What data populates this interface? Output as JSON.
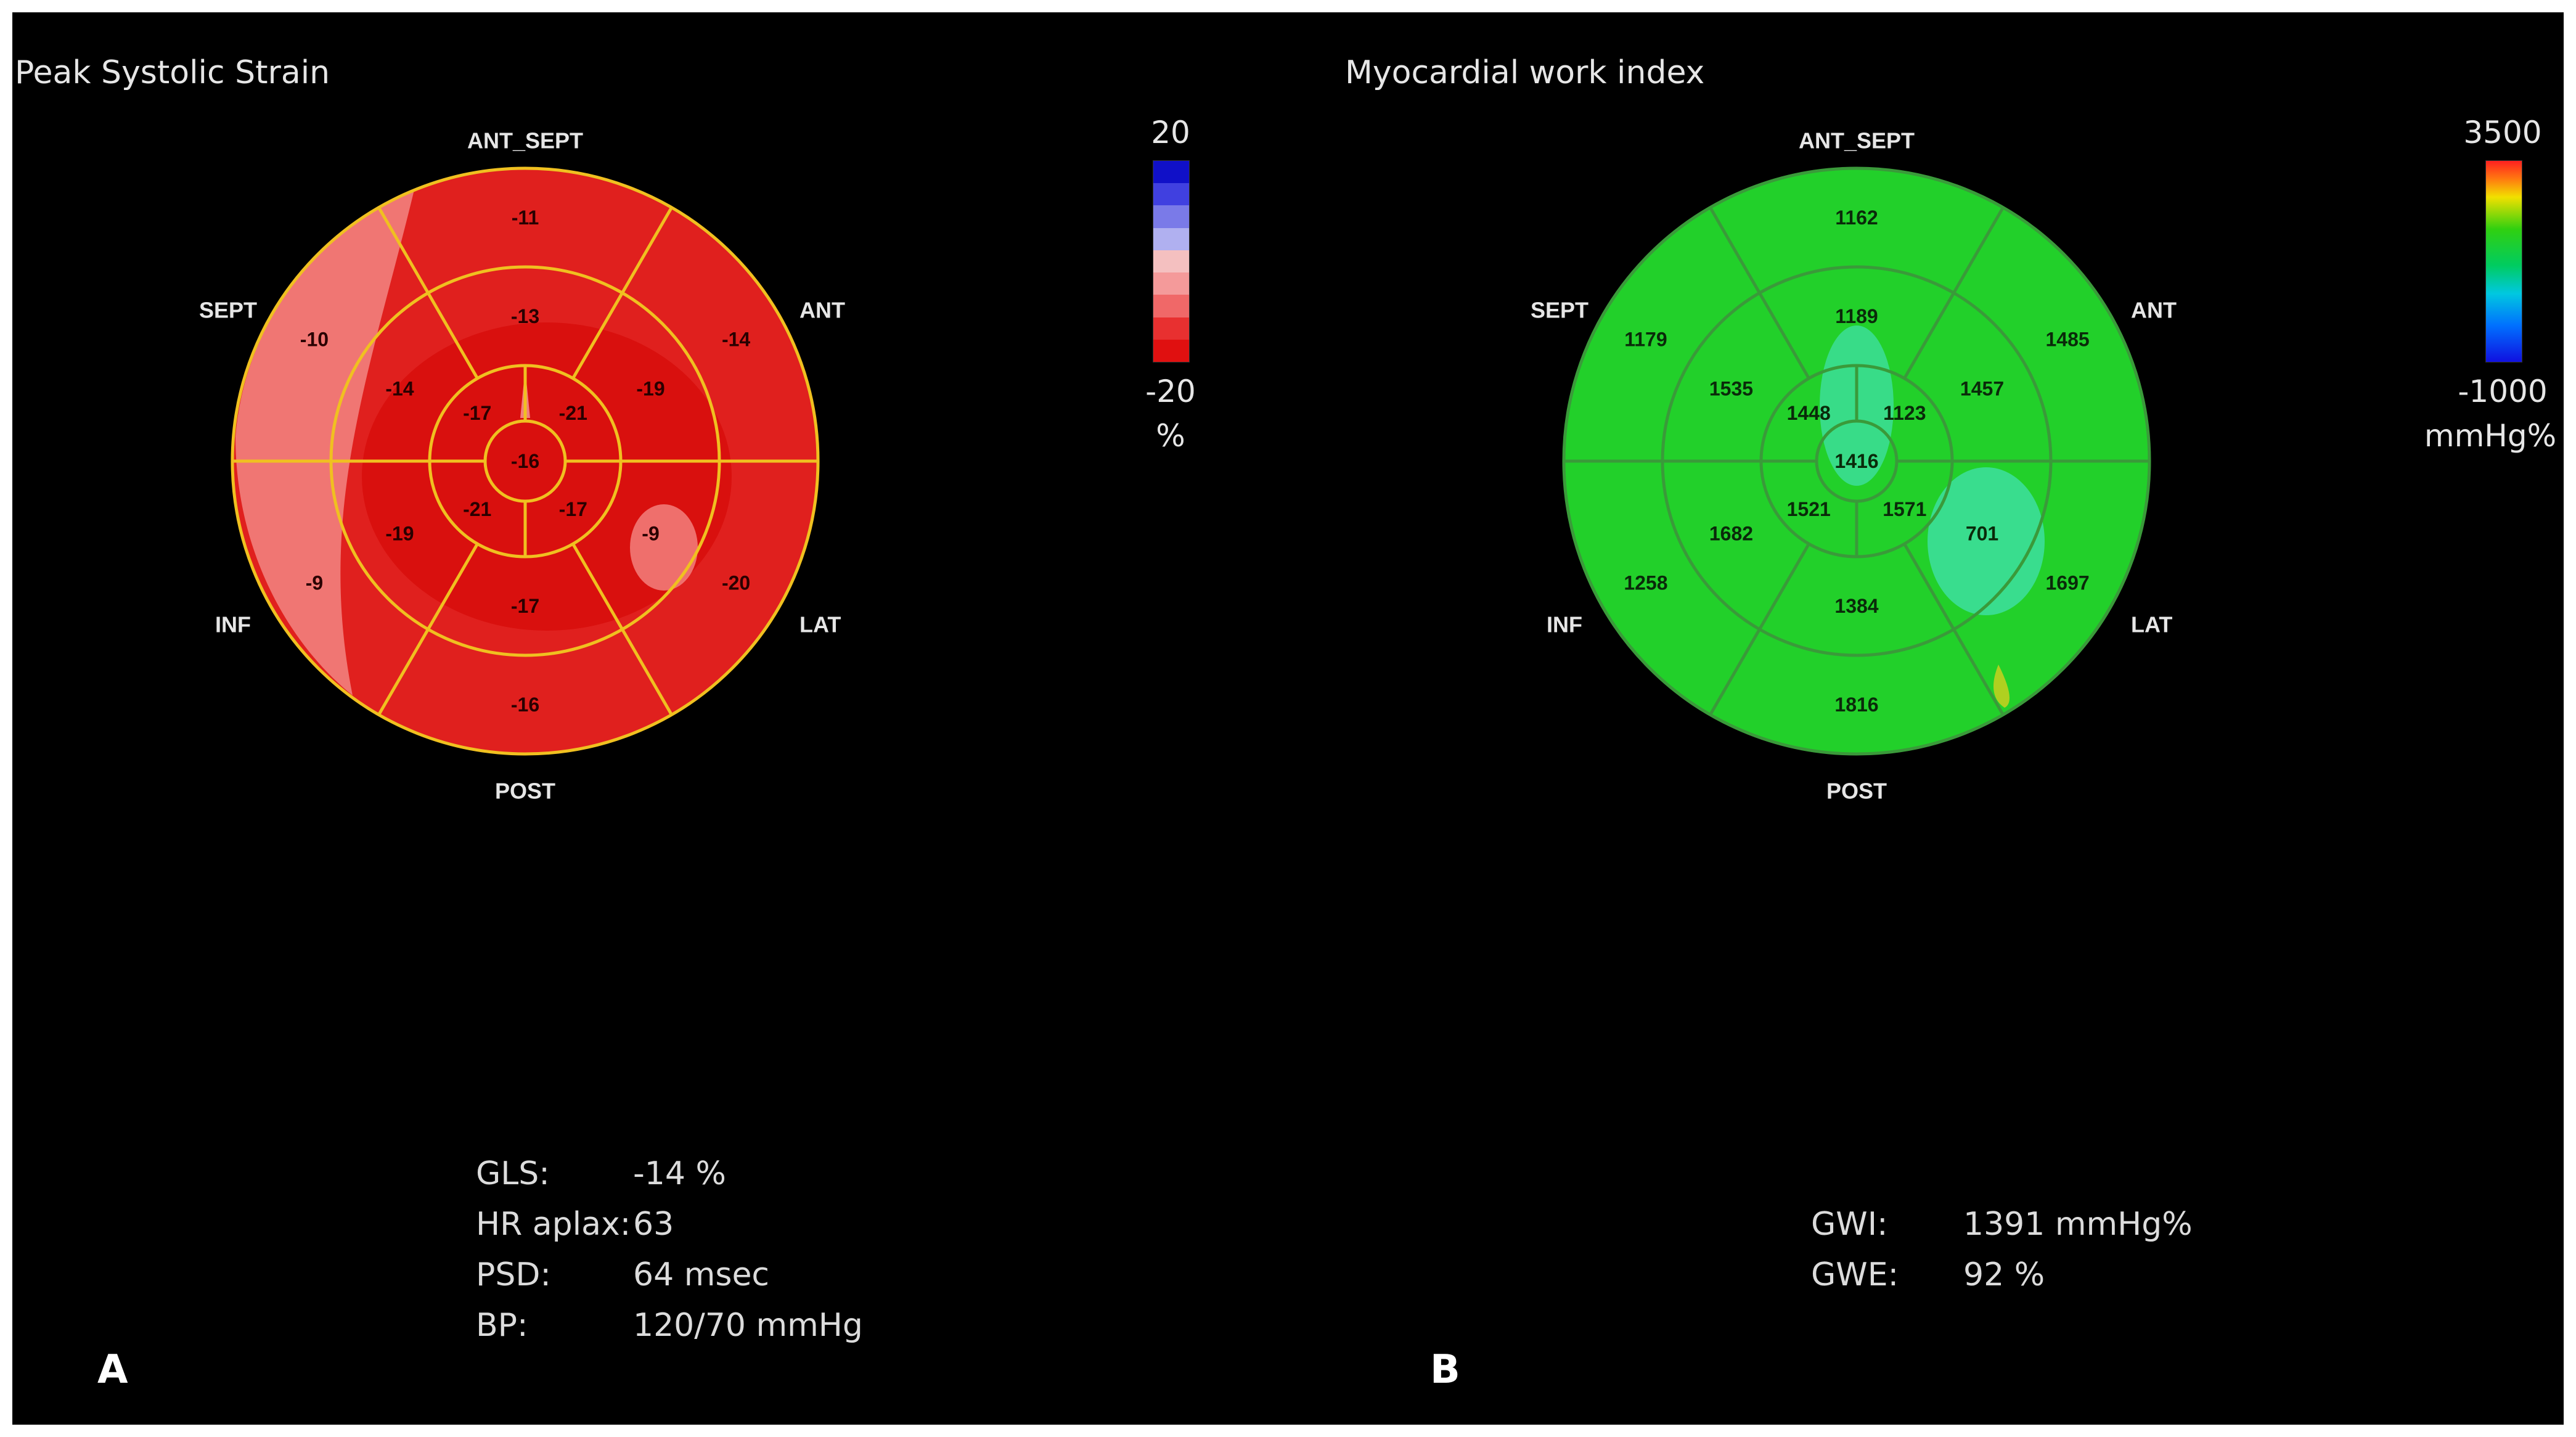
{
  "panels": [
    {
      "id": "A",
      "title": "Peak Systolic Strain",
      "letter": "A",
      "labels": {
        "top": "ANT_SEPT",
        "upper_right": "ANT",
        "lower_right": "LAT",
        "bottom": "POST",
        "lower_left": "INF",
        "upper_left": "SEPT"
      },
      "segments": {
        "basal": [
          "-11",
          "-14",
          "-20",
          "-16",
          "-9",
          "-10"
        ],
        "mid": [
          "-13",
          "-19",
          "-9",
          "-17",
          "-19",
          "-14"
        ],
        "apical": [
          "-21",
          "-17",
          "-21",
          "-17"
        ],
        "apex": "-16"
      },
      "scale": {
        "max": "20",
        "min": "-20",
        "unit": "%"
      },
      "colors": {
        "base": "#e0201e",
        "deep": "#d80e0c",
        "pale": "#f2807c",
        "grid": "#f0c020",
        "text": "#2a0000"
      },
      "stats": [
        {
          "label": "GLS:",
          "value": "-14 %"
        },
        {
          "label": "HR aplax:",
          "value": "63"
        },
        {
          "label": "PSD:",
          "value": "64 msec"
        },
        {
          "label": "BP:",
          "value": "120/70 mmHg"
        }
      ]
    },
    {
      "id": "B",
      "title": "Myocardial work index",
      "letter": "B",
      "labels": {
        "top": "ANT_SEPT",
        "upper_right": "ANT",
        "lower_right": "LAT",
        "bottom": "POST",
        "lower_left": "INF",
        "upper_left": "SEPT"
      },
      "segments": {
        "basal": [
          "1162",
          "1485",
          "1697",
          "1816",
          "1258",
          "1179"
        ],
        "mid": [
          "1189",
          "1457",
          "701",
          "1384",
          "1682",
          "1535"
        ],
        "apical": [
          "1123",
          "1571",
          "1521",
          "1448"
        ],
        "apex": "1416"
      },
      "scale": {
        "max": "3500",
        "min": "-1000",
        "unit": "mmHg%"
      },
      "colors": {
        "base": "#22d02a",
        "deep": "#1cc024",
        "pale": "#40e0a8",
        "grid": "#3a9a3a",
        "text": "#0a2a0a"
      },
      "stats": [
        {
          "label": "GWI:",
          "value": "1391 mmHg%"
        },
        {
          "label": "GWE:",
          "value": "92 %"
        }
      ]
    }
  ],
  "strain_colorbar": [
    "#1010c8",
    "#4040e0",
    "#7a7ae8",
    "#b0b0f0",
    "#f4c0c0",
    "#f49a9a",
    "#f06868",
    "#e83030",
    "#e01010"
  ]
}
